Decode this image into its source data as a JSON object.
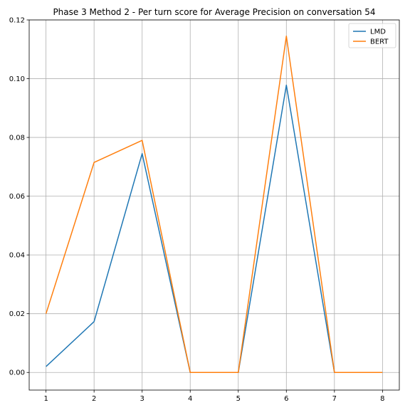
{
  "chart_data": {
    "type": "line",
    "title": "Phase 3 Method 2 - Per turn score for Average Precision on conversation 54",
    "xlabel": "",
    "ylabel": "",
    "x": [
      1,
      2,
      3,
      4,
      5,
      6,
      7,
      8
    ],
    "xlim": [
      0.65,
      8.35
    ],
    "ylim": [
      -0.006,
      0.12
    ],
    "xticks": [
      "1",
      "2",
      "3",
      "4",
      "5",
      "6",
      "7",
      "8"
    ],
    "yticks": [
      "0.00",
      "0.02",
      "0.04",
      "0.06",
      "0.08",
      "0.10",
      "0.12"
    ],
    "grid": true,
    "legend_position": "upper-right",
    "series": [
      {
        "name": "LMD",
        "color": "#1f77b4",
        "values": [
          0.002,
          0.0173,
          0.0745,
          0.0,
          0.0,
          0.0978,
          0.0,
          0.0
        ]
      },
      {
        "name": "BERT",
        "color": "#ff7f0e",
        "values": [
          0.02,
          0.0715,
          0.079,
          0.0,
          0.0,
          0.1145,
          0.0,
          0.0
        ]
      }
    ]
  }
}
